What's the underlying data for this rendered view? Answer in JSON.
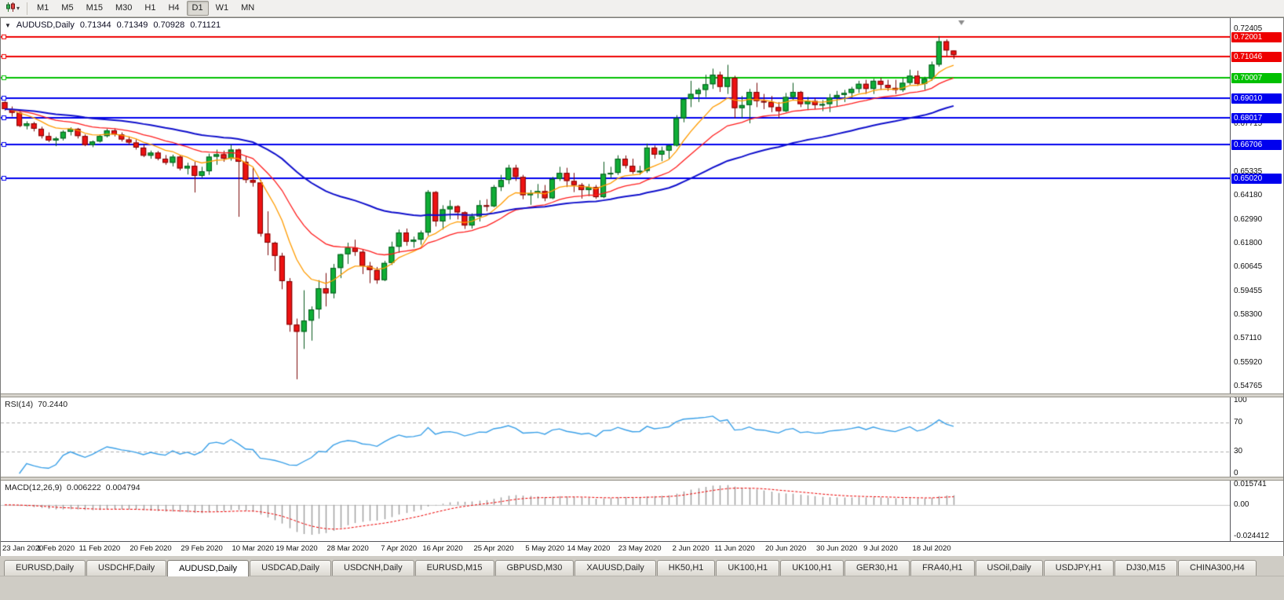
{
  "toolbar": {
    "chart_mode_tooltip": "Candlesticks",
    "timeframes": [
      "M1",
      "M5",
      "M15",
      "M30",
      "H1",
      "H4",
      "D1",
      "W1",
      "MN"
    ],
    "active_timeframe": "D1"
  },
  "chart": {
    "symbol_header": {
      "symbol": "AUDUSD,Daily",
      "open": "0.71344",
      "high": "0.71349",
      "low": "0.70928",
      "close": "0.71121"
    }
  },
  "chart_data": {
    "type": "candlestick",
    "title": "AUDUSD Daily with RSI and MACD",
    "main": {
      "price_range": [
        0.544,
        0.7295
      ],
      "axis_ticks": [
        "0.72405",
        "0.68830",
        "0.67715",
        "0.65335",
        "0.64180",
        "0.62990",
        "0.61800",
        "0.60645",
        "0.59455",
        "0.58300",
        "0.57110",
        "0.55920",
        "0.54765"
      ],
      "hlines": [
        {
          "price": 0.72001,
          "label": "0.72001",
          "color": "#ee0000"
        },
        {
          "price": 0.71046,
          "label": "0.71046",
          "color": "#ee0000"
        },
        {
          "price": 0.70007,
          "label": "0.70007",
          "color": "#00c000"
        },
        {
          "price": 0.6901,
          "label": "0.69010",
          "color": "#0000ee"
        },
        {
          "price": 0.68017,
          "label": "0.68017",
          "color": "#0000ee"
        },
        {
          "price": 0.66706,
          "label": "0.66706",
          "color": "#0000ee"
        },
        {
          "price": 0.6502,
          "label": "0.65020",
          "color": "#0000ee"
        }
      ],
      "moving_averages": [
        {
          "name": "fast-ma",
          "period": 9,
          "color": "#ff9c00",
          "width": 1.3
        },
        {
          "name": "medium-ma",
          "period": 20,
          "color": "#ff1e1e",
          "width": 1.3
        },
        {
          "name": "slow-ma",
          "period": 50,
          "color": "#1010cc",
          "width": 2
        }
      ],
      "candle_colors": {
        "up_fill": "#0fae36",
        "up_border": "#07591d",
        "down_fill": "#ee1212",
        "down_border": "#7a0606",
        "wick_up": "#07591d",
        "wick_down": "#7a0606"
      },
      "x_labels": [
        "23 Jan 2020",
        "1 Feb 2020",
        "11 Feb 2020",
        "20 Feb 2020",
        "29 Feb 2020",
        "10 Mar 2020",
        "19 Mar 2020",
        "28 Mar 2020",
        "7 Apr 2020",
        "16 Apr 2020",
        "25 Apr 2020",
        "5 May 2020",
        "14 May 2020",
        "23 May 2020",
        "2 Jun 2020",
        "11 Jun 2020",
        "20 Jun 2020",
        "30 Jun 2020",
        "9 Jul 2020",
        "18 Jul 2020"
      ],
      "x_label_positions": [
        0,
        7,
        13,
        20,
        27,
        34,
        40,
        47,
        54,
        60,
        67,
        74,
        80,
        87,
        94,
        100,
        107,
        114,
        120,
        127
      ],
      "bars": [
        [
          0.688,
          0.6885,
          0.6838,
          0.6845
        ],
        [
          0.6845,
          0.6858,
          0.6808,
          0.6827
        ],
        [
          0.6827,
          0.6832,
          0.6756,
          0.6762
        ],
        [
          0.6762,
          0.6785,
          0.6745,
          0.6775
        ],
        [
          0.6775,
          0.6782,
          0.6735,
          0.6748
        ],
        [
          0.6748,
          0.6758,
          0.67,
          0.6712
        ],
        [
          0.6712,
          0.673,
          0.6682,
          0.669
        ],
        [
          0.669,
          0.6708,
          0.6662,
          0.67
        ],
        [
          0.67,
          0.674,
          0.669,
          0.6733
        ],
        [
          0.6733,
          0.6755,
          0.6715,
          0.6748
        ],
        [
          0.6748,
          0.6752,
          0.67,
          0.6712
        ],
        [
          0.6712,
          0.672,
          0.6662,
          0.6668
        ],
        [
          0.6668,
          0.669,
          0.6657,
          0.6685
        ],
        [
          0.6685,
          0.672,
          0.668,
          0.6712
        ],
        [
          0.6712,
          0.6748,
          0.6705,
          0.674
        ],
        [
          0.674,
          0.675,
          0.671,
          0.672
        ],
        [
          0.672,
          0.673,
          0.6685,
          0.6695
        ],
        [
          0.6695,
          0.671,
          0.6668,
          0.668
        ],
        [
          0.668,
          0.6695,
          0.6645,
          0.6655
        ],
        [
          0.6655,
          0.667,
          0.6608,
          0.6615
        ],
        [
          0.6615,
          0.664,
          0.66,
          0.663
        ],
        [
          0.663,
          0.6638,
          0.6592,
          0.66
        ],
        [
          0.66,
          0.6618,
          0.657,
          0.658
        ],
        [
          0.658,
          0.662,
          0.6562,
          0.661
        ],
        [
          0.661,
          0.6617,
          0.6542,
          0.6552
        ],
        [
          0.6552,
          0.658,
          0.6522,
          0.6565
        ],
        [
          0.6565,
          0.6585,
          0.6433,
          0.6515
        ],
        [
          0.6515,
          0.656,
          0.6505,
          0.6538
        ],
        [
          0.6538,
          0.6625,
          0.652,
          0.661
        ],
        [
          0.661,
          0.6645,
          0.657,
          0.6622
        ],
        [
          0.6622,
          0.664,
          0.6585,
          0.66
        ],
        [
          0.66,
          0.667,
          0.659,
          0.6645
        ],
        [
          0.6645,
          0.665,
          0.6313,
          0.6585
        ],
        [
          0.6585,
          0.6612,
          0.648,
          0.6495
        ],
        [
          0.6495,
          0.6558,
          0.6462,
          0.6482
        ],
        [
          0.6482,
          0.6495,
          0.6215,
          0.623
        ],
        [
          0.623,
          0.634,
          0.6123,
          0.6185
        ],
        [
          0.6185,
          0.619,
          0.6045,
          0.612
        ],
        [
          0.612,
          0.6135,
          0.5955,
          0.5995
        ],
        [
          0.5995,
          0.601,
          0.5745,
          0.578
        ],
        [
          0.578,
          0.581,
          0.551,
          0.5745
        ],
        [
          0.5745,
          0.595,
          0.566,
          0.58
        ],
        [
          0.58,
          0.587,
          0.5701,
          0.5855
        ],
        [
          0.5855,
          0.6,
          0.581,
          0.596
        ],
        [
          0.596,
          0.6035,
          0.587,
          0.5935
        ],
        [
          0.5935,
          0.608,
          0.591,
          0.606
        ],
        [
          0.606,
          0.613,
          0.601,
          0.6128
        ],
        [
          0.6128,
          0.6185,
          0.608,
          0.616
        ],
        [
          0.616,
          0.62,
          0.612,
          0.614
        ],
        [
          0.614,
          0.615,
          0.603,
          0.607
        ],
        [
          0.607,
          0.609,
          0.5985,
          0.605
        ],
        [
          0.605,
          0.6065,
          0.5982,
          0.6
        ],
        [
          0.6,
          0.6095,
          0.5995,
          0.6085
        ],
        [
          0.6085,
          0.619,
          0.6075,
          0.6165
        ],
        [
          0.6165,
          0.625,
          0.6135,
          0.6235
        ],
        [
          0.6235,
          0.6255,
          0.617,
          0.619
        ],
        [
          0.619,
          0.6215,
          0.616,
          0.62
        ],
        [
          0.62,
          0.6245,
          0.6175,
          0.6235
        ],
        [
          0.6235,
          0.6445,
          0.622,
          0.6435
        ],
        [
          0.6435,
          0.644,
          0.6265,
          0.629
        ],
        [
          0.629,
          0.637,
          0.625,
          0.635
        ],
        [
          0.635,
          0.6395,
          0.63,
          0.6365
        ],
        [
          0.6365,
          0.637,
          0.63,
          0.6335
        ],
        [
          0.6335,
          0.634,
          0.6253,
          0.627
        ],
        [
          0.627,
          0.633,
          0.6255,
          0.6315
        ],
        [
          0.6315,
          0.6395,
          0.629,
          0.637
        ],
        [
          0.637,
          0.64,
          0.634,
          0.6365
        ],
        [
          0.6365,
          0.647,
          0.636,
          0.646
        ],
        [
          0.646,
          0.652,
          0.644,
          0.6495
        ],
        [
          0.6495,
          0.657,
          0.6475,
          0.6555
        ],
        [
          0.6555,
          0.657,
          0.649,
          0.651
        ],
        [
          0.651,
          0.652,
          0.64,
          0.642
        ],
        [
          0.642,
          0.6445,
          0.6372,
          0.643
        ],
        [
          0.643,
          0.6475,
          0.6405,
          0.644
        ],
        [
          0.644,
          0.647,
          0.639,
          0.6405
        ],
        [
          0.6405,
          0.651,
          0.64,
          0.65
        ],
        [
          0.65,
          0.656,
          0.649,
          0.653
        ],
        [
          0.653,
          0.6555,
          0.646,
          0.649
        ],
        [
          0.649,
          0.653,
          0.6435,
          0.647
        ],
        [
          0.647,
          0.648,
          0.6403,
          0.6445
        ],
        [
          0.6445,
          0.6475,
          0.6415,
          0.646
        ],
        [
          0.646,
          0.647,
          0.6402,
          0.641
        ],
        [
          0.641,
          0.6585,
          0.6405,
          0.6525
        ],
        [
          0.6525,
          0.656,
          0.6505,
          0.653
        ],
        [
          0.653,
          0.6617,
          0.652,
          0.66
        ],
        [
          0.66,
          0.6616,
          0.6552,
          0.6565
        ],
        [
          0.6565,
          0.66,
          0.6525,
          0.6535
        ],
        [
          0.6535,
          0.6565,
          0.652,
          0.654
        ],
        [
          0.654,
          0.6675,
          0.653,
          0.6655
        ],
        [
          0.6655,
          0.6665,
          0.66,
          0.662
        ],
        [
          0.662,
          0.666,
          0.6588,
          0.664
        ],
        [
          0.664,
          0.667,
          0.66,
          0.6665
        ],
        [
          0.6665,
          0.6815,
          0.666,
          0.68
        ],
        [
          0.68,
          0.69,
          0.678,
          0.6895
        ],
        [
          0.6895,
          0.6985,
          0.6855,
          0.692
        ],
        [
          0.692,
          0.695,
          0.688,
          0.694
        ],
        [
          0.694,
          0.7015,
          0.6905,
          0.6968
        ],
        [
          0.6968,
          0.7045,
          0.6945,
          0.7015
        ],
        [
          0.7015,
          0.703,
          0.693,
          0.6955
        ],
        [
          0.6955,
          0.7064,
          0.692,
          0.7
        ],
        [
          0.7,
          0.701,
          0.68,
          0.685
        ],
        [
          0.685,
          0.691,
          0.68,
          0.6865
        ],
        [
          0.6865,
          0.6945,
          0.6775,
          0.693
        ],
        [
          0.693,
          0.6975,
          0.6855,
          0.6885
        ],
        [
          0.6885,
          0.692,
          0.6845,
          0.688
        ],
        [
          0.688,
          0.691,
          0.683,
          0.6855
        ],
        [
          0.6855,
          0.688,
          0.68,
          0.6835
        ],
        [
          0.6835,
          0.6925,
          0.683,
          0.6905
        ],
        [
          0.6905,
          0.6975,
          0.689,
          0.693
        ],
        [
          0.693,
          0.6935,
          0.6855,
          0.687
        ],
        [
          0.687,
          0.6905,
          0.684,
          0.6885
        ],
        [
          0.6885,
          0.69,
          0.6845,
          0.6865
        ],
        [
          0.6865,
          0.689,
          0.6835,
          0.687
        ],
        [
          0.687,
          0.692,
          0.683,
          0.6902
        ],
        [
          0.6902,
          0.6935,
          0.686,
          0.6915
        ],
        [
          0.6915,
          0.694,
          0.688,
          0.6925
        ],
        [
          0.6925,
          0.6955,
          0.69,
          0.6945
        ],
        [
          0.6945,
          0.6985,
          0.6925,
          0.697
        ],
        [
          0.697,
          0.699,
          0.692,
          0.6945
        ],
        [
          0.6945,
          0.6995,
          0.692,
          0.6985
        ],
        [
          0.6985,
          0.7,
          0.694,
          0.6965
        ],
        [
          0.6965,
          0.699,
          0.6935,
          0.695
        ],
        [
          0.695,
          0.699,
          0.692,
          0.694
        ],
        [
          0.694,
          0.7,
          0.693,
          0.6975
        ],
        [
          0.6975,
          0.704,
          0.6965,
          0.701
        ],
        [
          0.701,
          0.7035,
          0.696,
          0.697
        ],
        [
          0.697,
          0.7005,
          0.694,
          0.6995
        ],
        [
          0.6995,
          0.708,
          0.6985,
          0.7065
        ],
        [
          0.7065,
          0.7206,
          0.7055,
          0.718
        ],
        [
          0.718,
          0.719,
          0.7108,
          0.7135
        ],
        [
          0.71344,
          0.71349,
          0.70928,
          0.71121
        ]
      ]
    },
    "rsi": {
      "label": "RSI(14)",
      "value": "70.2440",
      "period": 14,
      "levels": [
        70,
        30
      ],
      "axis": [
        {
          "v": 100,
          "t": "100"
        },
        {
          "v": 70,
          "t": "70"
        },
        {
          "v": 30,
          "t": "30"
        },
        {
          "v": 0,
          "t": "0"
        }
      ],
      "color": "#3aa0e8",
      "range": [
        0,
        100
      ]
    },
    "macd": {
      "label": "MACD(12,26,9)",
      "value_main": "0.006222",
      "value_signal": "0.004794",
      "fast": 12,
      "slow": 26,
      "signal": 9,
      "axis": [
        {
          "v": 0.015741,
          "t": "0.015741"
        },
        {
          "v": 0,
          "t": "0.00"
        },
        {
          "v": -0.024412,
          "t": "-0.024412"
        }
      ],
      "hist_color": "#9b9b9b",
      "signal_color": "#ee0000"
    }
  },
  "tabs": {
    "items": [
      "EURUSD,Daily",
      "USDCHF,Daily",
      "AUDUSD,Daily",
      "USDCAD,Daily",
      "USDCNH,Daily",
      "EURUSD,M15",
      "GBPUSD,M30",
      "XAUUSD,Daily",
      "HK50,H1",
      "UK100,H1",
      "UK100,H1",
      "GER30,H1",
      "FRA40,H1",
      "USOil,Daily",
      "USDJPY,H1",
      "DJ30,M15",
      "CHINA300,H4"
    ],
    "active_index": 2
  }
}
